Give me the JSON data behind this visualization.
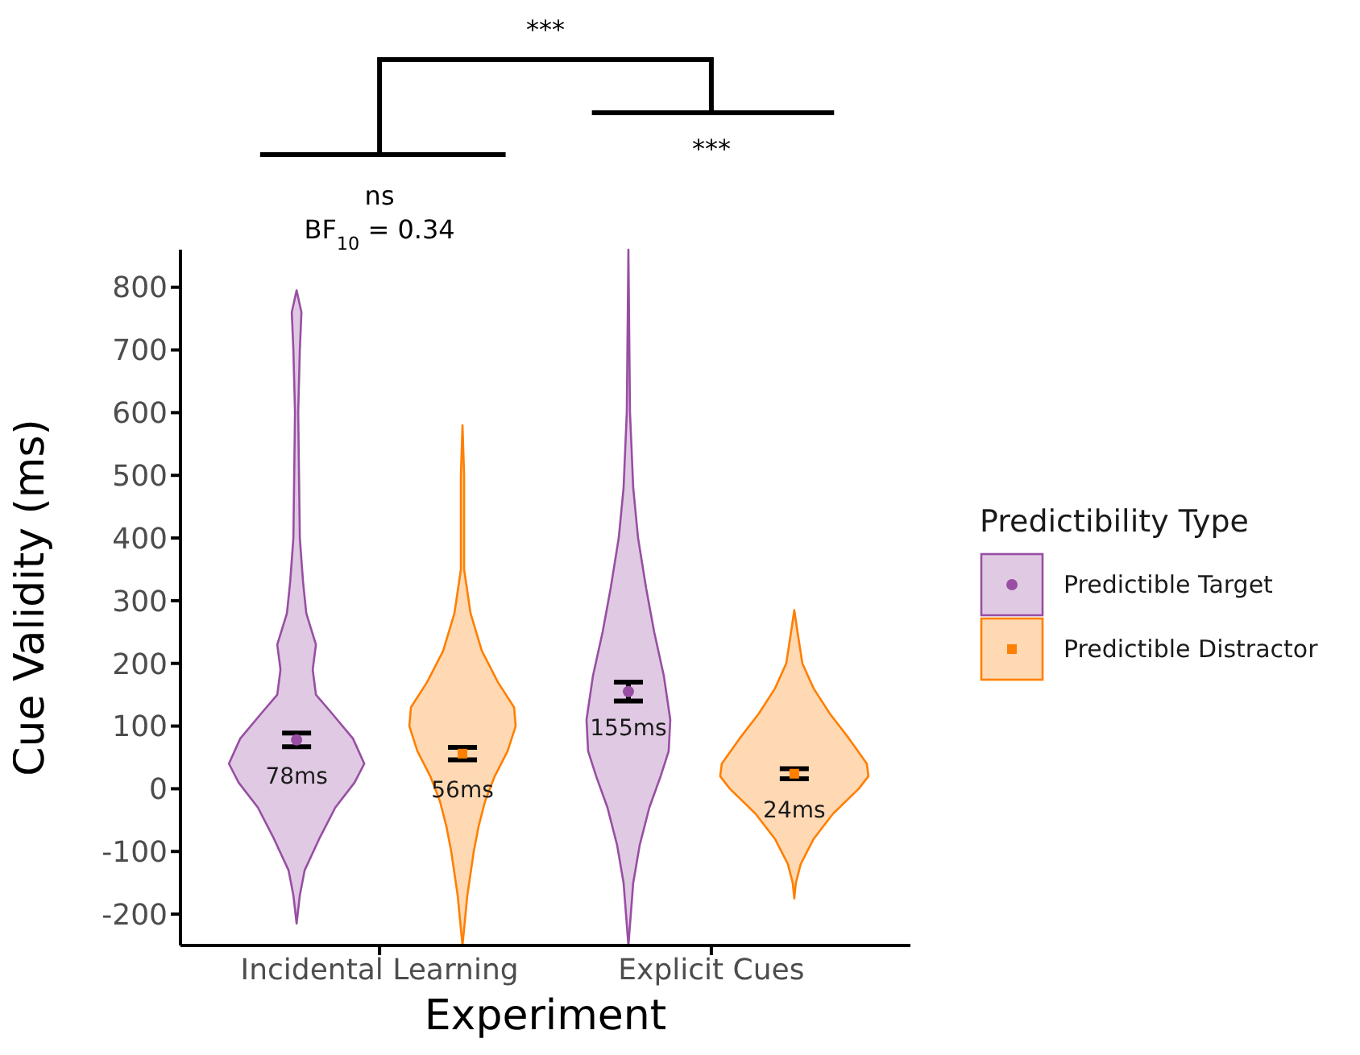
{
  "chart_data": {
    "type": "scatter",
    "xlabel": "Experiment",
    "ylabel": "Cue Validity (ms)",
    "legend_title": "Predictibility Type",
    "categories": [
      "Incidental Learning",
      "Explicit Cues"
    ],
    "series": [
      {
        "name": "Predictible Target",
        "color": "#984ea3",
        "marker": "circle",
        "values": [
          78,
          155
        ],
        "errors": [
          11,
          15
        ],
        "value_labels": [
          "78ms",
          "155ms"
        ]
      },
      {
        "name": "Predictible Distractor",
        "color": "#ff7f00",
        "marker": "square",
        "values": [
          56,
          24
        ],
        "errors": [
          10,
          8
        ],
        "value_labels": [
          "56ms",
          "24ms"
        ]
      }
    ],
    "ylim": [
      -250,
      860
    ],
    "yticks": [
      -200,
      -100,
      0,
      100,
      200,
      300,
      400,
      500,
      600,
      700,
      800
    ],
    "legend": "right",
    "annotations": [
      "***",
      "***",
      "ns",
      "BF$_{10}$ = 0.34"
    ]
  }
}
